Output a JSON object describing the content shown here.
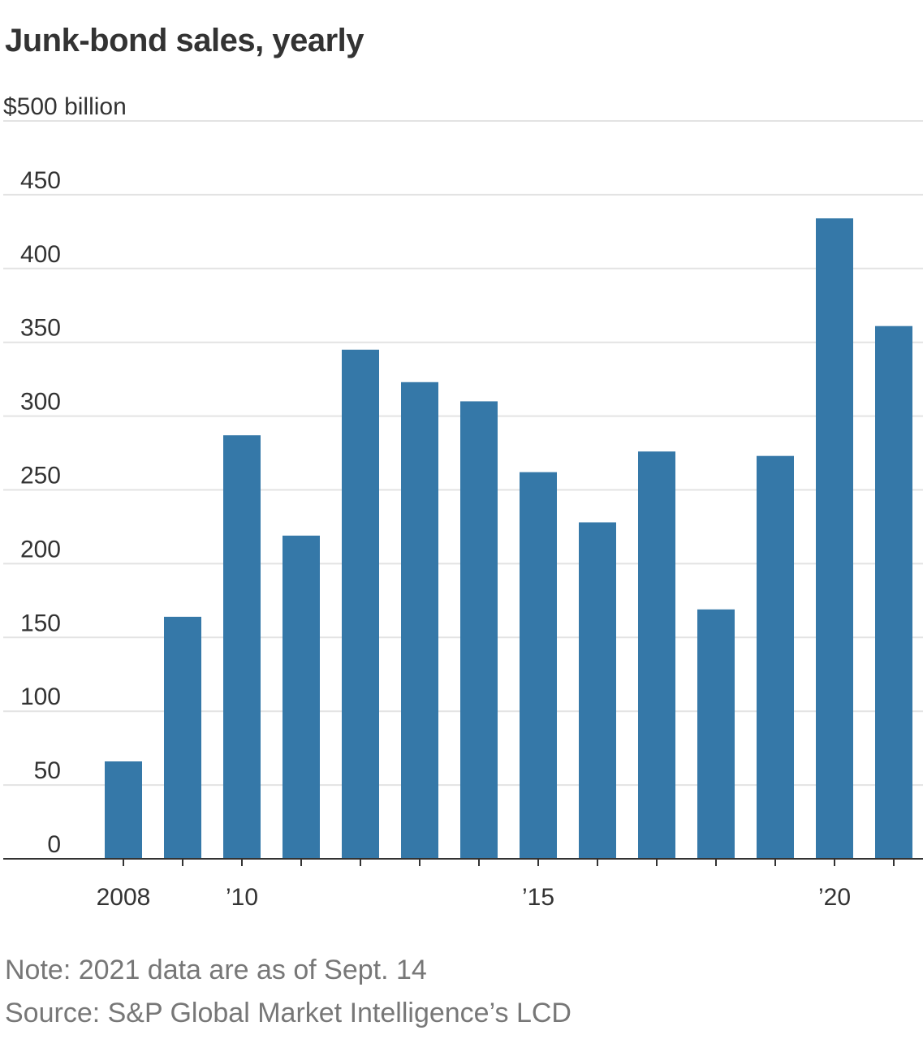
{
  "chart_data": {
    "type": "bar",
    "title": "Junk-bond sales, yearly",
    "y_unit_label": "$500 billion",
    "y_ticks": [
      "50",
      "100",
      "150",
      "200",
      "250",
      "300",
      "350",
      "400",
      "450"
    ],
    "y_zero_label": "0",
    "ylim": [
      0,
      500
    ],
    "x_labels": [
      {
        "year": 2008,
        "label": "2008"
      },
      {
        "year": 2010,
        "label": "’10"
      },
      {
        "year": 2015,
        "label": "’15"
      },
      {
        "year": 2020,
        "label": "’20"
      }
    ],
    "categories": [
      2008,
      2009,
      2010,
      2011,
      2012,
      2013,
      2014,
      2015,
      2016,
      2017,
      2018,
      2019,
      2020,
      2021
    ],
    "values": [
      66,
      164,
      287,
      219,
      345,
      323,
      310,
      262,
      228,
      276,
      169,
      273,
      434,
      361
    ],
    "grid": true,
    "bar_color": "#3578a8"
  },
  "notes": {
    "note": "Note: 2021 data are as of Sept. 14",
    "source": "Source: S&P Global Market Intelligence’s LCD"
  }
}
